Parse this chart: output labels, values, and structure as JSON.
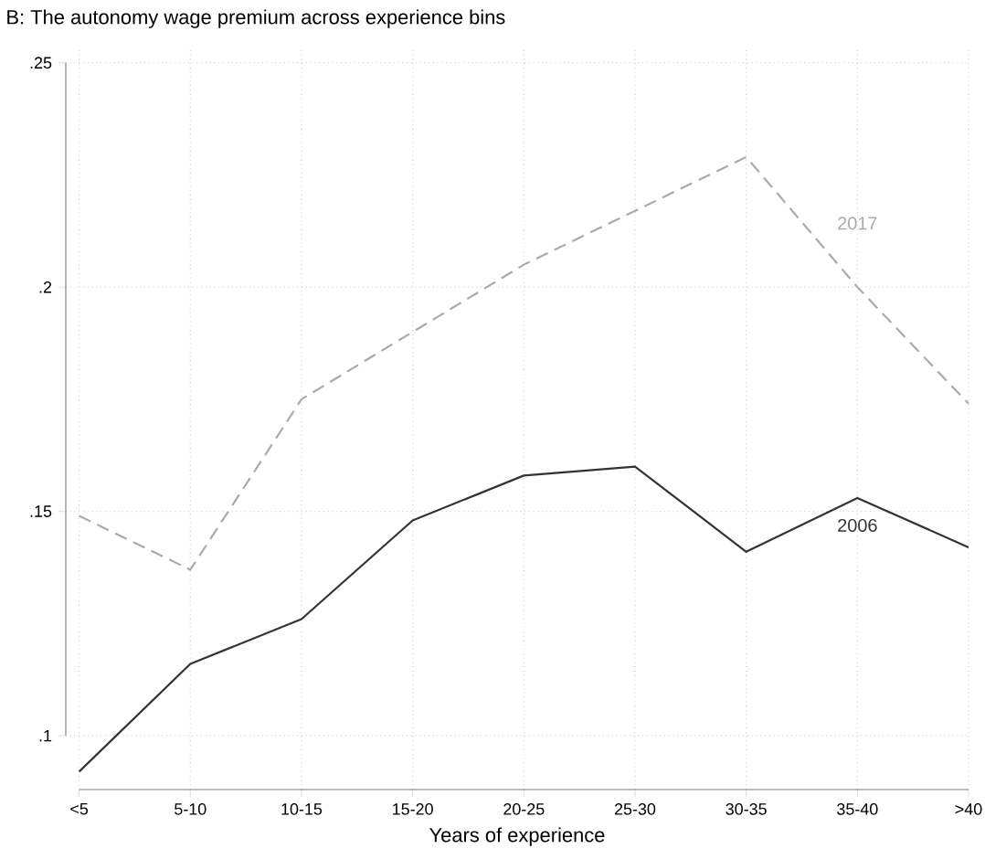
{
  "chart_data": {
    "type": "line",
    "title": "B: The autonomy wage premium across experience bins",
    "xlabel": "Years of experience",
    "categories": [
      "<5",
      "5-10",
      "10-15",
      "15-20",
      "20-25",
      "25-30",
      "30-35",
      "35-40",
      ">40"
    ],
    "series": [
      {
        "name": "2006",
        "color": "#333333",
        "line_style": "solid",
        "values": [
          0.092,
          0.116,
          0.126,
          0.148,
          0.158,
          0.16,
          0.141,
          0.153,
          0.142
        ]
      },
      {
        "name": "2017",
        "color": "#aaaaaa",
        "line_style": "dashed",
        "values": [
          0.149,
          0.137,
          0.175,
          0.19,
          0.205,
          0.217,
          0.229,
          0.2,
          0.174
        ]
      }
    ],
    "ylim": [
      0.088,
      0.253
    ],
    "yticks": [
      {
        "value": 0.1,
        "label": ".1"
      },
      {
        "value": 0.15,
        "label": ".15"
      },
      {
        "value": 0.2,
        "label": ".2"
      },
      {
        "value": 0.25,
        "label": ".25"
      }
    ],
    "grid": true,
    "legend": false,
    "marker": "none"
  }
}
